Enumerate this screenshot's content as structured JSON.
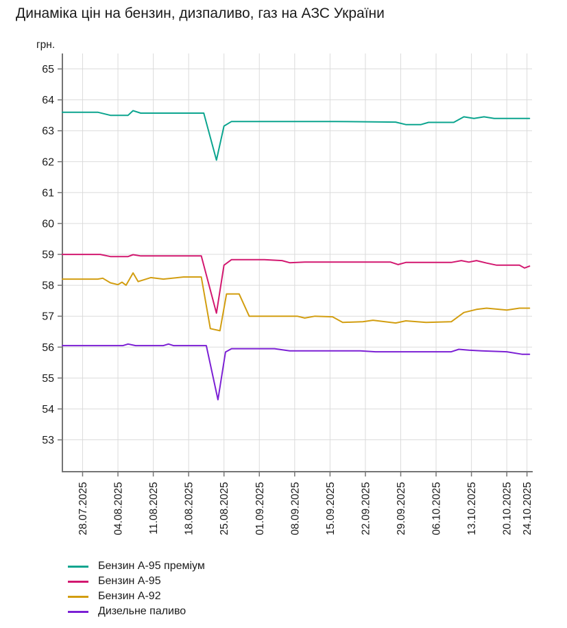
{
  "title": "Динаміка цін на бензин, дизпаливо, газ на АЗС України",
  "axis_style": {
    "axis_color": "#747474",
    "grid_color": "#dbdbdb",
    "text_color": "#1a1a1a"
  },
  "chart_data": {
    "type": "line",
    "title": "Динаміка цін на бензин, дизпаливо, газ на АЗС України",
    "ylabel": "грн.",
    "grid": true,
    "legend_position": "bottom-left",
    "ylim": [
      51.97,
      65.5
    ],
    "x_domain_days": [
      -4,
      89
    ],
    "y_ticks": [
      53,
      54,
      55,
      56,
      57,
      58,
      59,
      60,
      61,
      62,
      63,
      64,
      65
    ],
    "x_tick_labels": [
      "28.07.2025",
      "04.08.2025",
      "11.08.2025",
      "18.08.2025",
      "25.08.2025",
      "01.09.2025",
      "08.09.2025",
      "15.09.2025",
      "22.09.2025",
      "29.09.2025",
      "06.10.2025",
      "13.10.2025",
      "20.10.2025",
      "24.10.2025"
    ],
    "x_tick_days": [
      0,
      7,
      14,
      21,
      28,
      35,
      42,
      49,
      56,
      63,
      70,
      77,
      84,
      88
    ],
    "series": [
      {
        "name": "Бензин А-95 преміум",
        "color": "#0aa48e",
        "points": [
          [
            -4,
            63.6
          ],
          [
            3,
            63.6
          ],
          [
            5.5,
            63.5
          ],
          [
            9,
            63.5
          ],
          [
            10,
            63.65
          ],
          [
            11.5,
            63.57
          ],
          [
            24,
            63.57
          ],
          [
            26.5,
            62.05
          ],
          [
            28,
            63.15
          ],
          [
            29.5,
            63.3
          ],
          [
            50,
            63.3
          ],
          [
            62,
            63.28
          ],
          [
            64,
            63.2
          ],
          [
            67,
            63.2
          ],
          [
            68.5,
            63.27
          ],
          [
            73.5,
            63.27
          ],
          [
            75.5,
            63.45
          ],
          [
            77.5,
            63.4
          ],
          [
            79.5,
            63.45
          ],
          [
            81.5,
            63.4
          ],
          [
            88.5,
            63.4
          ]
        ]
      },
      {
        "name": "Бензин А-95",
        "color": "#d2176f",
        "points": [
          [
            -4,
            59.0
          ],
          [
            3.5,
            59.0
          ],
          [
            5.5,
            58.93
          ],
          [
            9,
            58.93
          ],
          [
            10,
            58.99
          ],
          [
            11.5,
            58.95
          ],
          [
            23.5,
            58.95
          ],
          [
            26.5,
            57.1
          ],
          [
            28,
            58.65
          ],
          [
            29.5,
            58.83
          ],
          [
            36,
            58.83
          ],
          [
            39.5,
            58.8
          ],
          [
            41,
            58.73
          ],
          [
            44,
            58.75
          ],
          [
            61,
            58.75
          ],
          [
            62.5,
            58.67
          ],
          [
            64,
            58.74
          ],
          [
            73,
            58.74
          ],
          [
            75,
            58.8
          ],
          [
            76.5,
            58.75
          ],
          [
            78,
            58.8
          ],
          [
            80,
            58.72
          ],
          [
            82,
            58.65
          ],
          [
            86.5,
            58.65
          ],
          [
            87.5,
            58.56
          ],
          [
            88.5,
            58.62
          ]
        ]
      },
      {
        "name": "Бензин А-92",
        "color": "#d29d0f",
        "points": [
          [
            -4,
            58.2
          ],
          [
            3,
            58.2
          ],
          [
            4,
            58.23
          ],
          [
            5.5,
            58.08
          ],
          [
            7,
            58.02
          ],
          [
            7.8,
            58.1
          ],
          [
            8.6,
            58.0
          ],
          [
            10,
            58.4
          ],
          [
            11,
            58.12
          ],
          [
            13.5,
            58.25
          ],
          [
            16,
            58.2
          ],
          [
            20,
            58.27
          ],
          [
            23.5,
            58.27
          ],
          [
            25.3,
            56.6
          ],
          [
            27.2,
            56.53
          ],
          [
            28.5,
            57.72
          ],
          [
            31,
            57.72
          ],
          [
            33,
            57.0
          ],
          [
            42.5,
            57.0
          ],
          [
            44,
            56.94
          ],
          [
            46,
            57.0
          ],
          [
            49.5,
            56.98
          ],
          [
            51.5,
            56.8
          ],
          [
            55.5,
            56.82
          ],
          [
            57.5,
            56.87
          ],
          [
            62,
            56.78
          ],
          [
            64,
            56.85
          ],
          [
            68,
            56.8
          ],
          [
            73,
            56.82
          ],
          [
            75.5,
            57.12
          ],
          [
            78,
            57.22
          ],
          [
            80,
            57.26
          ],
          [
            84,
            57.2
          ],
          [
            86.5,
            57.26
          ],
          [
            88.5,
            57.26
          ]
        ]
      },
      {
        "name": "Дизельне паливо",
        "color": "#7b1fd4",
        "points": [
          [
            -4,
            56.05
          ],
          [
            8,
            56.05
          ],
          [
            9,
            56.1
          ],
          [
            10.5,
            56.05
          ],
          [
            16,
            56.05
          ],
          [
            17,
            56.1
          ],
          [
            18,
            56.05
          ],
          [
            24.5,
            56.05
          ],
          [
            26.8,
            54.3
          ],
          [
            28.3,
            55.84
          ],
          [
            29.5,
            55.95
          ],
          [
            38,
            55.95
          ],
          [
            41,
            55.88
          ],
          [
            55,
            55.88
          ],
          [
            58,
            55.85
          ],
          [
            73,
            55.85
          ],
          [
            74.5,
            55.93
          ],
          [
            76.5,
            55.9
          ],
          [
            79,
            55.88
          ],
          [
            84,
            55.85
          ],
          [
            87,
            55.77
          ],
          [
            88.5,
            55.77
          ]
        ]
      }
    ]
  }
}
